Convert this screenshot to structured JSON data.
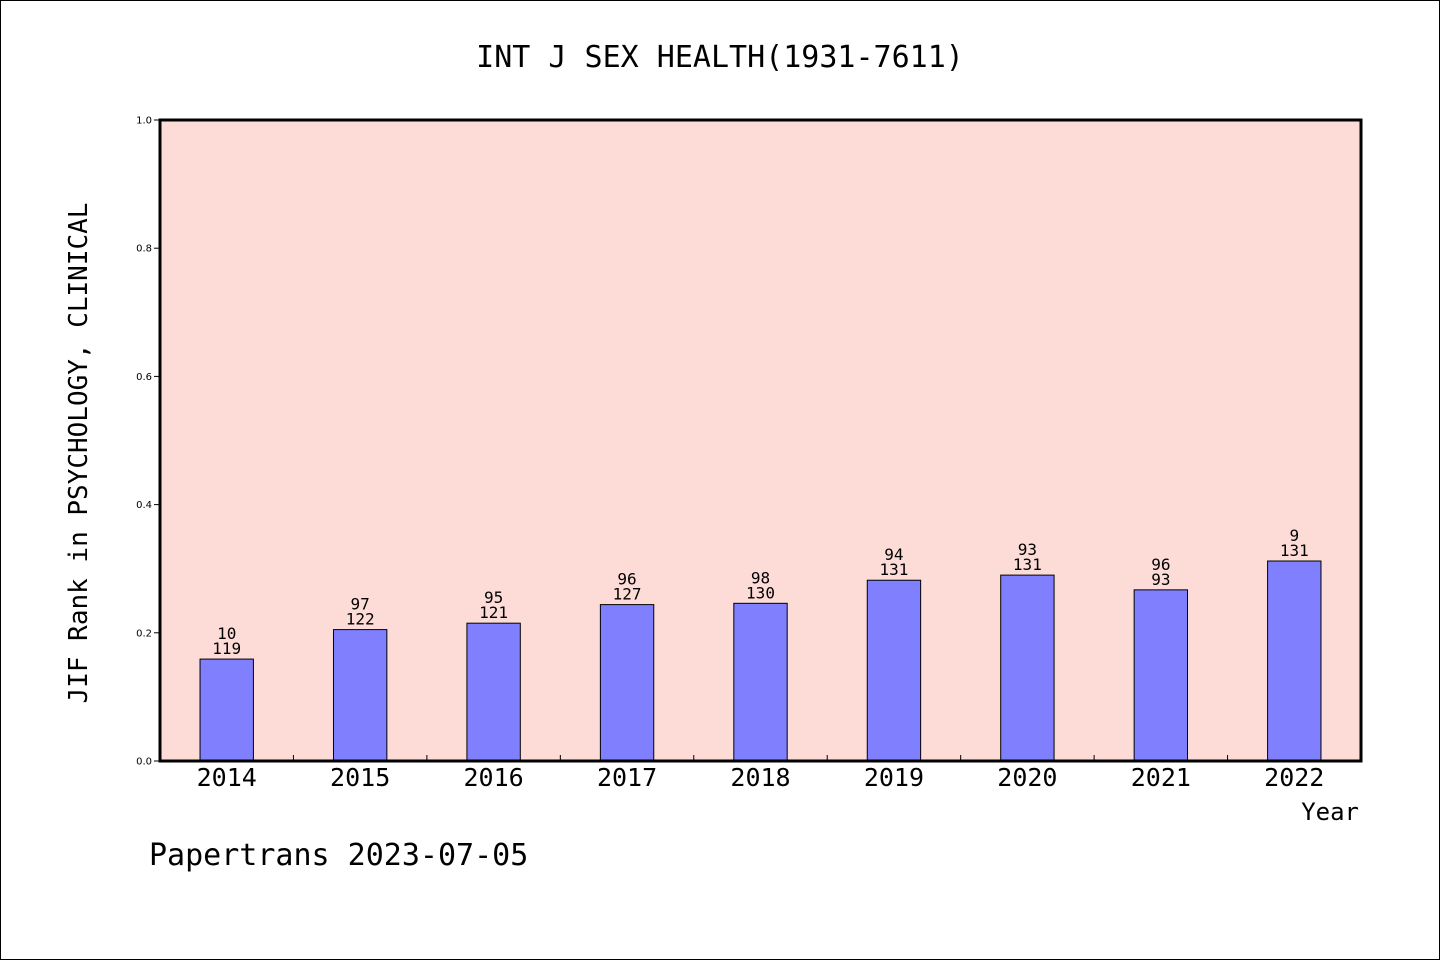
{
  "chart_data": {
    "type": "bar",
    "title": "INT J SEX HEALTH(1931-7611)",
    "xlabel": "Year",
    "ylabel": "JIF Rank in PSYCHOLOGY, CLINICAL",
    "ylim": [
      0,
      1.0
    ],
    "yticks": [
      "0.0",
      "0.2",
      "0.4",
      "0.6",
      "0.8",
      "1.0"
    ],
    "categories": [
      "2014",
      "2015",
      "2016",
      "2017",
      "2018",
      "2019",
      "2020",
      "2021",
      "2022"
    ],
    "values": [
      0.159,
      0.205,
      0.215,
      0.244,
      0.246,
      0.282,
      0.29,
      0.267,
      0.312
    ],
    "rank": [
      "10",
      "97",
      "95",
      "96",
      "98",
      "94",
      "93",
      "96",
      "9"
    ],
    "total": [
      "119",
      "122",
      "121",
      "127",
      "130",
      "131",
      "131",
      "93",
      "131"
    ],
    "grid": false,
    "plot_background": "#fddcd8",
    "bar_color": "#8080ff"
  },
  "footer": "Papertrans 2023-07-05"
}
